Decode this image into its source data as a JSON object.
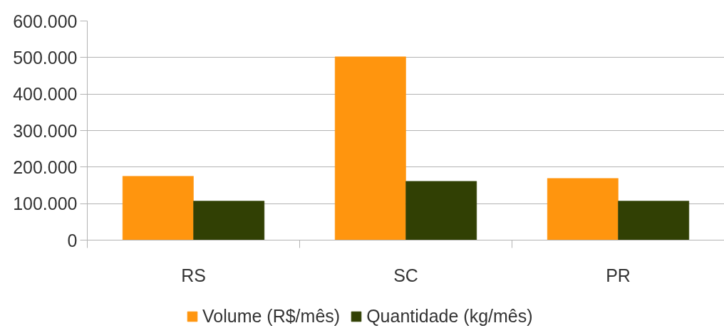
{
  "chart_data": {
    "type": "bar",
    "categories": [
      "RS",
      "SC",
      "PR"
    ],
    "series": [
      {
        "name": "Volume (R$/mês)",
        "color": "#ff950e",
        "values": [
          175000,
          502000,
          169000
        ]
      },
      {
        "name": "Quantidade (kg/mês)",
        "color": "#314004",
        "values": [
          107000,
          161000,
          107000
        ]
      }
    ],
    "ylim": [
      0,
      600000
    ],
    "yticks": [
      0,
      {
        "value": 100000,
        "label": "100.000"
      },
      {
        "value": 200000,
        "label": "200.000"
      },
      {
        "value": 300000,
        "label": "300.000"
      },
      {
        "value": 400000,
        "label": "400.000"
      },
      {
        "value": 500000,
        "label": "500.000"
      },
      {
        "value": 600000,
        "label": "600.000"
      }
    ],
    "grid": "y",
    "legend": "bottom"
  }
}
